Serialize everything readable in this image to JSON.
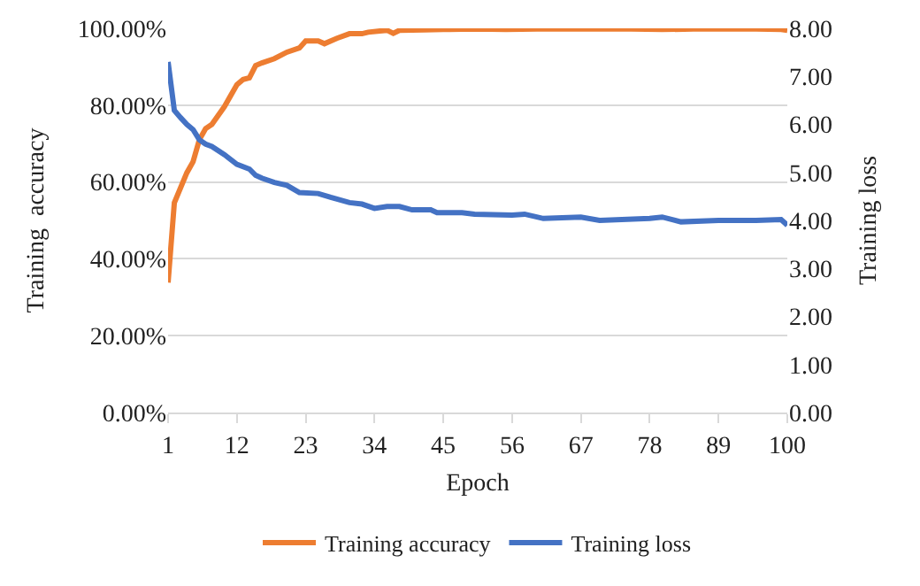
{
  "chart_data": {
    "type": "line",
    "xlabel": "Epoch",
    "ylabel": "Training  accuracy",
    "y2label": "Training loss",
    "xlim": [
      1,
      100
    ],
    "xticks": [
      1,
      12,
      23,
      34,
      45,
      56,
      67,
      78,
      89,
      100
    ],
    "ylim": [
      0,
      100
    ],
    "yticks": [
      {
        "value": 0,
        "label": "0.00%"
      },
      {
        "value": 20,
        "label": "20.00%"
      },
      {
        "value": 40,
        "label": "40.00%"
      },
      {
        "value": 60,
        "label": "60.00%"
      },
      {
        "value": 80,
        "label": "80.00%"
      },
      {
        "value": 100,
        "label": "100.00%"
      }
    ],
    "y2lim": [
      0,
      8
    ],
    "y2ticks": [
      {
        "value": 0,
        "label": "0.00"
      },
      {
        "value": 1,
        "label": "1.00"
      },
      {
        "value": 2,
        "label": "2.00"
      },
      {
        "value": 3,
        "label": "3.00"
      },
      {
        "value": 4,
        "label": "4.00"
      },
      {
        "value": 5,
        "label": "5.00"
      },
      {
        "value": 6,
        "label": "6.00"
      },
      {
        "value": 7,
        "label": "7.00"
      },
      {
        "value": 8,
        "label": "8.00"
      }
    ],
    "grid": "y",
    "legend": "bottom",
    "marker": "none",
    "line_style": "solid",
    "series": [
      {
        "name": "Training accuracy",
        "color": "#ed7d31",
        "x": [
          1,
          2,
          4,
          5,
          6,
          7,
          8,
          10,
          12,
          13,
          14,
          15,
          16,
          18,
          20,
          22,
          23,
          25,
          26,
          28,
          30,
          32,
          33,
          36,
          37,
          38,
          42,
          45,
          50,
          55,
          60,
          65,
          70,
          75,
          80,
          85,
          90,
          95,
          99,
          100
        ],
        "values": [
          33.8,
          54.6,
          62.4,
          65.3,
          71,
          73.9,
          75,
          79.6,
          85.3,
          86.7,
          87.1,
          90.3,
          91,
          92.1,
          93.8,
          94.9,
          96.7,
          96.7,
          96,
          97.4,
          98.6,
          98.6,
          99,
          99.5,
          98.7,
          99.5,
          99.6,
          99.7,
          99.8,
          99.7,
          99.8,
          99.8,
          99.8,
          99.8,
          99.7,
          99.8,
          99.8,
          99.8,
          99.7,
          99.5
        ]
      },
      {
        "name": "Training loss",
        "color": "#4472c4",
        "axis": "y2",
        "x": [
          1,
          2,
          3,
          4,
          5,
          6,
          7,
          8,
          10,
          12,
          14,
          15,
          16,
          18,
          20,
          22,
          25,
          27,
          30,
          32,
          34,
          36,
          38,
          40,
          43,
          44,
          48,
          50,
          56,
          58,
          61,
          67,
          70,
          78,
          80,
          83,
          89,
          95,
          99,
          100
        ],
        "values": [
          7.3,
          6.29,
          6.14,
          6.0,
          5.89,
          5.68,
          5.59,
          5.54,
          5.37,
          5.17,
          5.07,
          4.94,
          4.88,
          4.79,
          4.73,
          4.58,
          4.56,
          4.48,
          4.37,
          4.34,
          4.25,
          4.29,
          4.29,
          4.22,
          4.22,
          4.16,
          4.16,
          4.13,
          4.11,
          4.13,
          4.04,
          4.07,
          4.0,
          4.04,
          4.07,
          3.97,
          4.0,
          4.0,
          4.02,
          3.9
        ]
      }
    ]
  }
}
